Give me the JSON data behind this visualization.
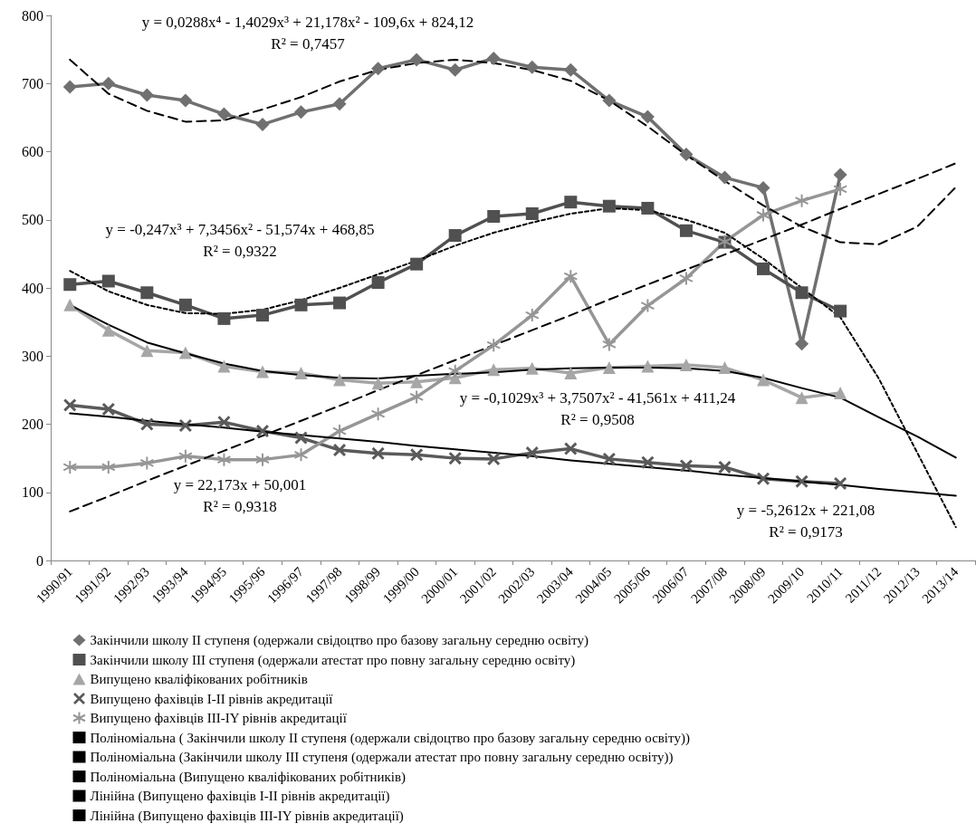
{
  "chart_data": {
    "type": "line",
    "categories": [
      "1990/91",
      "1991/92",
      "1992/93",
      "1993/94",
      "1994/95",
      "1995/96",
      "1996/97",
      "1997/98",
      "1998/99",
      "1999/00",
      "2000/01",
      "2001/02",
      "2002/03",
      "2003/04",
      "2004/05",
      "2005/06",
      "2006/07",
      "2007/08",
      "2008/09",
      "2009/10",
      "2010/11",
      "2011/12",
      "2012/13",
      "2013/14"
    ],
    "series": [
      {
        "name": "Закінчили школу II ступеня (одержали свідоцтво про базову загальну середню освіту)",
        "color": "#707070",
        "marker": "diamond",
        "values": [
          695,
          700,
          683,
          675,
          655,
          640,
          658,
          670,
          722,
          735,
          720,
          737,
          724,
          720,
          675,
          651,
          596,
          562,
          547,
          318,
          566,
          null,
          null,
          null
        ]
      },
      {
        "name": "Закінчили школу III ступеня (одержали атестат про повну загальну середню освіту)",
        "color": "#505050",
        "marker": "square",
        "values": [
          405,
          410,
          393,
          375,
          355,
          360,
          375,
          378,
          408,
          435,
          477,
          505,
          509,
          526,
          520,
          517,
          484,
          467,
          428,
          393,
          366,
          null,
          null,
          null
        ]
      },
      {
        "name": "Випущено кваліфікованих робітників",
        "color": "#a6a6a6",
        "marker": "triangle",
        "values": [
          375,
          338,
          308,
          305,
          285,
          277,
          275,
          265,
          260,
          262,
          268,
          280,
          282,
          275,
          283,
          285,
          287,
          283,
          265,
          239,
          246,
          null,
          null,
          null
        ]
      },
      {
        "name": "Випущено фахівців I-II рівнів акредитації",
        "color": "#5a5a5a",
        "marker": "cross",
        "values": [
          228,
          222,
          200,
          198,
          203,
          190,
          180,
          162,
          157,
          155,
          150,
          149,
          158,
          164,
          149,
          144,
          139,
          137,
          120,
          116,
          113,
          null,
          null,
          null
        ]
      },
      {
        "name": "Випущено фахівців III-IY рівнів акредитації",
        "color": "#969696",
        "marker": "star",
        "values": [
          137,
          137,
          143,
          153,
          148,
          148,
          155,
          190,
          215,
          240,
          278,
          316,
          360,
          417,
          317,
          374,
          414,
          468,
          507,
          528,
          545,
          null,
          null,
          null
        ]
      },
      {
        "name": "Поліноміальна ( Закінчили школу II ступеня (одержали свідоцтво про базову загальну середню освіту))",
        "color": "#000000",
        "marker": "none",
        "line_style": "dashed",
        "values": [
          735,
          685,
          660,
          644,
          646,
          662,
          680,
          703,
          720,
          730,
          735,
          730,
          720,
          704,
          675,
          637,
          595,
          557,
          521,
          490,
          467,
          464,
          490,
          548
        ]
      },
      {
        "name": "Поліноміальна (Закінчили школу III ступеня (одержали атестат про повну загальну середню освіту))",
        "color": "#000000",
        "marker": "none",
        "line_style": "dotted",
        "values": [
          425,
          395,
          375,
          363,
          362,
          368,
          382,
          400,
          420,
          440,
          462,
          481,
          496,
          509,
          517,
          514,
          500,
          481,
          443,
          400,
          357,
          267,
          158,
          49
        ]
      },
      {
        "name": "Поліноміальна (Випущено кваліфікованих робітників)",
        "color": "#000000",
        "marker": "none",
        "line_style": "solid",
        "values": [
          375,
          346,
          320,
          304,
          289,
          278,
          272,
          268,
          267,
          271,
          274,
          276,
          280,
          282,
          283,
          283,
          282,
          278,
          268,
          253,
          239,
          210,
          182,
          151
        ]
      },
      {
        "name": "Лінійна (Випущено фахівців I-II рівнів акредитації)",
        "color": "#000000",
        "marker": "none",
        "line_style": "solid",
        "values": [
          216,
          211,
          205,
          200,
          195,
          189,
          184,
          179,
          174,
          168,
          163,
          158,
          153,
          147,
          142,
          137,
          132,
          126,
          121,
          116,
          111,
          105,
          100,
          95
        ]
      },
      {
        "name": "Лінійна (Випущено фахівців III-IY рівнів акредитації)",
        "color": "#000000",
        "marker": "none",
        "line_style": "dashed",
        "values": [
          72,
          94,
          117,
          139,
          161,
          183,
          205,
          227,
          250,
          272,
          294,
          316,
          338,
          360,
          383,
          405,
          427,
          449,
          471,
          493,
          516,
          538,
          560,
          583
        ]
      }
    ],
    "ylim": [
      0,
      800
    ],
    "yticks": [
      0,
      100,
      200,
      300,
      400,
      500,
      600,
      700,
      800
    ],
    "grid": false,
    "legend": "bottom",
    "annotations": [
      "y = 0,0288x⁴ - 1,4029x³ + 21,178x² - 109,6x + 824,12\nR² = 0,7457",
      "y = -0,247x³ + 7,3456x² - 51,574x + 468,85\nR² = 0,9322",
      "y = -0,1029x³ + 3,7507x² - 41,561x + 411,24\nR² = 0,9508",
      "y = 22,173x + 50,001\nR² = 0,9318",
      "y = -5,2612x + 221,08\nR² = 0,9173"
    ]
  }
}
